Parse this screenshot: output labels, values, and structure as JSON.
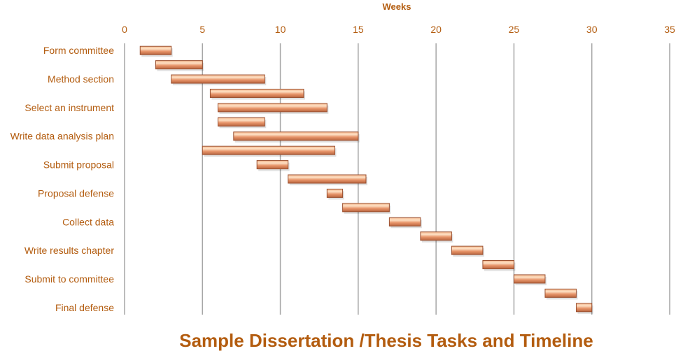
{
  "chart_data": {
    "type": "bar",
    "orientation": "horizontal-gantt",
    "title": "Sample Dissertation /Thesis Tasks and Timeline",
    "xlabel": "Weeks",
    "ylabel": "",
    "xlim": [
      0,
      35
    ],
    "xticks": [
      0,
      5,
      10,
      15,
      20,
      25,
      30,
      35
    ],
    "grid": true,
    "legend": "none",
    "bar_color": "#e8956a",
    "text_color": "#b35c0f",
    "tasks": [
      {
        "label": "Form committee",
        "start": 1,
        "end": 3
      },
      {
        "label": "",
        "start": 2,
        "end": 5
      },
      {
        "label": "Method section",
        "start": 3,
        "end": 9
      },
      {
        "label": "",
        "start": 5.5,
        "end": 11.5
      },
      {
        "label": "Select an instrument",
        "start": 6,
        "end": 13
      },
      {
        "label": "",
        "start": 6,
        "end": 9
      },
      {
        "label": "Write data analysis plan",
        "start": 7,
        "end": 15
      },
      {
        "label": "",
        "start": 5,
        "end": 13.5
      },
      {
        "label": "Submit proposal",
        "start": 8.5,
        "end": 10.5
      },
      {
        "label": "",
        "start": 10.5,
        "end": 15.5
      },
      {
        "label": "Proposal defense",
        "start": 13,
        "end": 14
      },
      {
        "label": "",
        "start": 14,
        "end": 17
      },
      {
        "label": "Collect data",
        "start": 17,
        "end": 19
      },
      {
        "label": "",
        "start": 19,
        "end": 21
      },
      {
        "label": "Write results chapter",
        "start": 21,
        "end": 23
      },
      {
        "label": "",
        "start": 23,
        "end": 25
      },
      {
        "label": "Submit to committee",
        "start": 25,
        "end": 27
      },
      {
        "label": "",
        "start": 27,
        "end": 29
      },
      {
        "label": "Final defense",
        "start": 29,
        "end": 30
      }
    ]
  }
}
